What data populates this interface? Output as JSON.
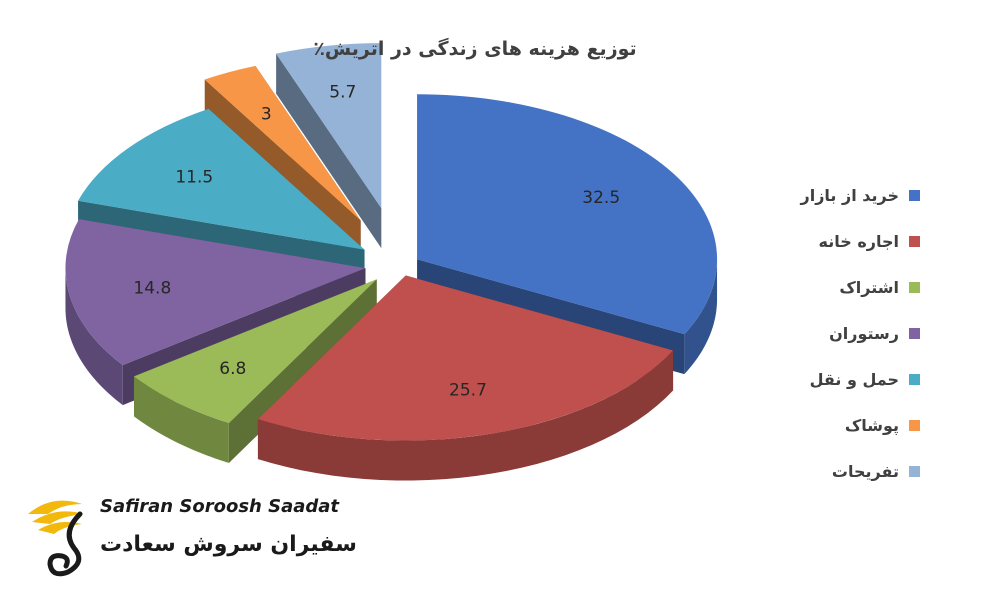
{
  "chart_data": {
    "type": "pie",
    "title": "توزیع هزینه های زندگی در اتریش٪",
    "categories": [
      "خرید از بازار",
      "اجاره خانه",
      "اشتراک",
      "رستوران",
      "حمل و نقل",
      "پوشاک",
      "تفریحات"
    ],
    "values": [
      32.5,
      25.7,
      6.8,
      14.8,
      11.5,
      3,
      5.7
    ],
    "data_labels": [
      "32.5",
      "25.7",
      "6.8",
      "14.8",
      "11.5",
      "3",
      "5.7"
    ],
    "colors": [
      "#4472C4",
      "#C0504D",
      "#9BBB59",
      "#8064A2",
      "#4BACC6",
      "#F79646",
      "#95B3D7"
    ],
    "legend_position": "right",
    "style": "3d-exploded"
  },
  "logo": {
    "name_en": "Safiran Soroosh Saadat",
    "name_fa": "سفیران سروش سعادت",
    "icon": "golden-wing-swirl-icon",
    "accent": "#F2B90C"
  }
}
